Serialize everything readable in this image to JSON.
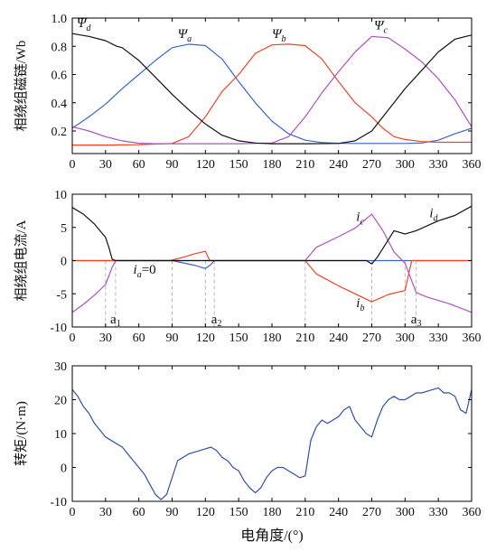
{
  "x_label": "电角度/(°)",
  "colors": {
    "phase_a": "#3b64c8",
    "phase_b": "#ee4422",
    "phase_c": "#b050c0",
    "phase_d": "#111111",
    "torque": "#3050a8"
  },
  "chart_data": [
    {
      "type": "line",
      "ylabel": "相绕组磁链/Wb",
      "xlim": [
        0,
        360
      ],
      "ylim": [
        0.04,
        1.0
      ],
      "xticks": [
        0,
        30,
        60,
        90,
        120,
        150,
        180,
        210,
        240,
        270,
        300,
        330,
        360
      ],
      "yticks": [
        "0.2",
        "0.4",
        "0.6",
        "0.8",
        "1.0"
      ],
      "yticks_values": [
        0.2,
        0.4,
        0.6,
        0.8,
        1.0
      ],
      "annotations": [
        {
          "text": "Ψ",
          "sub": "d",
          "x": 4,
          "y": 0.935
        },
        {
          "text": "Ψ",
          "sub": "a",
          "x": 95,
          "y": 0.86
        },
        {
          "text": "Ψ",
          "sub": "b",
          "x": 180,
          "y": 0.86
        },
        {
          "text": "Ψ",
          "sub": "c",
          "x": 272,
          "y": 0.92
        }
      ],
      "series": [
        {
          "phase": "a",
          "x": [
            0,
            15,
            30,
            45,
            60,
            75,
            90,
            105,
            120,
            135,
            150,
            165,
            180,
            195,
            210,
            225,
            240,
            255,
            270,
            285,
            300,
            315,
            330,
            345,
            360
          ],
          "y": [
            0.22,
            0.3,
            0.39,
            0.5,
            0.6,
            0.7,
            0.79,
            0.815,
            0.805,
            0.71,
            0.55,
            0.4,
            0.27,
            0.18,
            0.135,
            0.118,
            0.113,
            0.112,
            0.112,
            0.112,
            0.112,
            0.115,
            0.135,
            0.18,
            0.22
          ]
        },
        {
          "phase": "b",
          "x": [
            0,
            30,
            60,
            90,
            105,
            120,
            135,
            150,
            165,
            180,
            195,
            210,
            225,
            240,
            255,
            270,
            280,
            290,
            300,
            315,
            330,
            345,
            360
          ],
          "y": [
            0.1,
            0.1,
            0.103,
            0.112,
            0.16,
            0.3,
            0.48,
            0.6,
            0.75,
            0.81,
            0.815,
            0.805,
            0.71,
            0.55,
            0.4,
            0.3,
            0.22,
            0.16,
            0.14,
            0.125,
            0.12,
            0.12,
            0.12
          ]
        },
        {
          "phase": "c",
          "x": [
            0,
            15,
            30,
            45,
            60,
            75,
            90,
            120,
            150,
            180,
            195,
            210,
            225,
            240,
            255,
            270,
            285,
            300,
            315,
            330,
            345,
            360
          ],
          "y": [
            0.23,
            0.2,
            0.16,
            0.13,
            0.113,
            0.11,
            0.11,
            0.11,
            0.11,
            0.115,
            0.16,
            0.3,
            0.47,
            0.62,
            0.76,
            0.87,
            0.86,
            0.78,
            0.69,
            0.57,
            0.42,
            0.23
          ]
        },
        {
          "phase": "d",
          "x": [
            0,
            15,
            30,
            40,
            45,
            60,
            75,
            90,
            105,
            120,
            135,
            150,
            165,
            180,
            210,
            240,
            255,
            270,
            285,
            300,
            315,
            330,
            345,
            360
          ],
          "y": [
            0.89,
            0.87,
            0.84,
            0.8,
            0.79,
            0.7,
            0.58,
            0.46,
            0.35,
            0.25,
            0.17,
            0.13,
            0.115,
            0.11,
            0.11,
            0.112,
            0.13,
            0.2,
            0.35,
            0.5,
            0.63,
            0.76,
            0.85,
            0.88
          ]
        }
      ]
    },
    {
      "type": "line",
      "ylabel": "相绕组电流/A",
      "xlim": [
        0,
        360
      ],
      "ylim": [
        -10,
        10
      ],
      "xticks": [
        0,
        30,
        60,
        90,
        120,
        150,
        180,
        210,
        240,
        270,
        300,
        330,
        360
      ],
      "yticks": [
        "-10",
        "-5",
        "0",
        "5",
        "10"
      ],
      "yticks_values": [
        -10,
        -5,
        0,
        5,
        10
      ],
      "annotations": [
        {
          "text": "i",
          "sub": "a",
          "suffix": "=0",
          "x": 55,
          "y": -2.0
        },
        {
          "text": "i",
          "sub": "b",
          "x": 256,
          "y": -7.0
        },
        {
          "text": "i",
          "sub": "c",
          "x": 256,
          "y": 6.0
        },
        {
          "text": "i",
          "sub": "d",
          "x": 322,
          "y": 6.5
        }
      ],
      "markers": [
        {
          "label": "a",
          "sub": "1",
          "x_line": 30,
          "x_text": 39
        },
        {
          "label": "a",
          "sub": "1",
          "x_line": 39,
          "x_text": null
        },
        {
          "label": "a",
          "sub": "2",
          "x_line": 120,
          "x_text": 130
        },
        {
          "label": "a",
          "sub": "2",
          "x_line": 128,
          "x_text": null
        },
        {
          "label": "a",
          "sub": "3",
          "x_line": 300,
          "x_text": 310
        },
        {
          "label": "a",
          "sub": "3",
          "x_line": 310,
          "x_text": null
        }
      ],
      "dashed_lines_x": [
        30,
        39,
        90,
        120,
        128,
        210,
        270,
        300,
        310
      ],
      "series": [
        {
          "phase": "a",
          "x": [
            0,
            90,
            110,
            120,
            125,
            128,
            300,
            310,
            360
          ],
          "y": [
            0,
            0,
            -0.7,
            -1.2,
            -0.6,
            0,
            0,
            0,
            0
          ]
        },
        {
          "phase": "b",
          "x": [
            0,
            88,
            100,
            110,
            120,
            124,
            210,
            220,
            240,
            255,
            270,
            285,
            300,
            306,
            360
          ],
          "y": [
            0,
            0,
            0.5,
            1.0,
            1.4,
            0,
            0,
            -2.0,
            -3.8,
            -5.0,
            -6.2,
            -5.1,
            -4.5,
            0,
            0
          ]
        },
        {
          "phase": "c",
          "x": [
            0,
            10,
            20,
            30,
            36,
            39,
            210,
            220,
            240,
            255,
            270,
            280,
            290,
            300,
            310,
            320,
            340,
            360
          ],
          "y": [
            -7.8,
            -6.6,
            -5.2,
            -3.6,
            -1.0,
            0,
            0,
            2.0,
            3.6,
            4.9,
            7.0,
            4.5,
            1.3,
            -0.4,
            -4.8,
            -5.5,
            -6.5,
            -7.8
          ]
        },
        {
          "phase": "d",
          "x": [
            0,
            10,
            20,
            30,
            33,
            36,
            39,
            265,
            270,
            275,
            290,
            300,
            310,
            330,
            345,
            360
          ],
          "y": [
            8.0,
            7.0,
            5.5,
            3.5,
            2.0,
            0.2,
            0,
            0,
            -0.5,
            0.5,
            4.5,
            4.0,
            4.5,
            6.0,
            6.8,
            8.2
          ]
        }
      ]
    },
    {
      "type": "line",
      "ylabel": "转矩/(N·m)",
      "xlim": [
        0,
        360
      ],
      "ylim": [
        -10,
        30
      ],
      "xticks": [
        0,
        30,
        60,
        90,
        120,
        150,
        180,
        210,
        240,
        270,
        300,
        330,
        360
      ],
      "yticks": [
        "-10",
        "0",
        "10",
        "20",
        "30"
      ],
      "yticks_values": [
        -10,
        0,
        10,
        20,
        30
      ],
      "series": [
        {
          "name": "",
          "x": [
            0,
            5,
            10,
            15,
            20,
            25,
            30,
            35,
            40,
            45,
            50,
            55,
            60,
            65,
            70,
            75,
            80,
            85,
            90,
            95,
            100,
            105,
            110,
            115,
            120,
            125,
            130,
            135,
            140,
            145,
            150,
            155,
            160,
            165,
            170,
            175,
            180,
            185,
            190,
            195,
            200,
            205,
            210,
            215,
            220,
            225,
            230,
            235,
            240,
            245,
            250,
            255,
            260,
            265,
            270,
            275,
            280,
            285,
            290,
            295,
            300,
            305,
            310,
            315,
            320,
            325,
            330,
            335,
            340,
            345,
            350,
            355,
            360
          ],
          "y": [
            23,
            21,
            18,
            16,
            13,
            11,
            9,
            8,
            7,
            6,
            4,
            2,
            0,
            -2,
            -5,
            -8,
            -9.5,
            -8,
            -3,
            2,
            3,
            4,
            4.5,
            5,
            5.5,
            6,
            5,
            3,
            2,
            0,
            -1,
            -4,
            -6,
            -7.5,
            -6,
            -3,
            -1,
            0,
            0,
            -1,
            -2,
            -3,
            -2.5,
            8,
            12,
            14,
            13,
            14,
            15,
            17,
            18,
            14,
            12,
            10,
            9,
            14,
            18,
            20,
            21,
            20,
            20,
            21,
            22,
            22,
            22.5,
            23,
            23.5,
            22,
            22,
            21,
            17,
            16,
            23
          ]
        }
      ]
    }
  ]
}
